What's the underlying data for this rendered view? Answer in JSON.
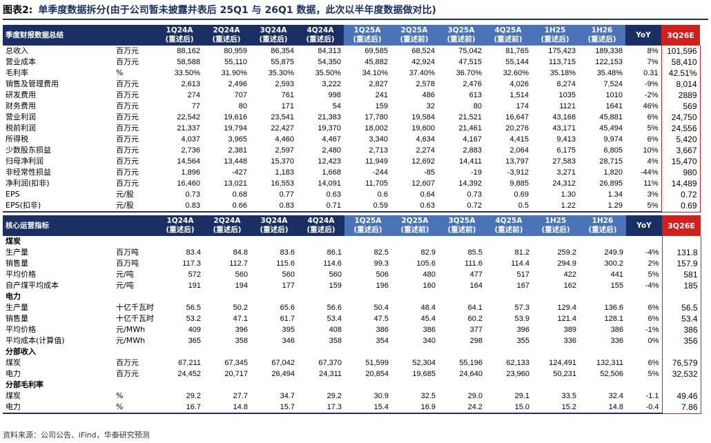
{
  "title": {
    "fig": "图表2:",
    "main": "单季度数据拆分(由于公司暂未披露并表后 25Q1 与 26Q1 数据，此次以半年度数据做对比)"
  },
  "table1": {
    "header": [
      "季度财报数据总结",
      "",
      "1Q24A\n(重述后)",
      "2Q24A\n(重述后)",
      "3Q24A\n(重述后)",
      "4Q24A\n(重述后)",
      "1Q25A\n(重述后)",
      "2Q25A\n(重述前)",
      "3Q25A\n(重述前)",
      "4Q25A\n(重述前)",
      "1H25\n(重述后)",
      "1H26\n(重述后)",
      "YoY",
      "3Q26E"
    ],
    "rows": [
      [
        "总收入",
        "百万元",
        "88,162",
        "80,959",
        "86,354",
        "84,313",
        "69,585",
        "68,524",
        "75,042",
        "81,765",
        "175,423",
        "189,338",
        "8%",
        "101,596"
      ],
      [
        "营业成本",
        "百万元",
        "58,588",
        "55,110",
        "55,875",
        "54,350",
        "45,882",
        "42,924",
        "47,515",
        "55,144",
        "113,715",
        "122,153",
        "7%",
        "58,410"
      ],
      [
        "毛利率",
        "%",
        "33.50%",
        "31.90%",
        "35.30%",
        "35.50%",
        "34.10%",
        "37.40%",
        "36.70%",
        "32.60%",
        "35.18%",
        "35.48%",
        "0.31",
        "42.51%"
      ],
      [
        "销售及管理费用",
        "百万元",
        "2,613",
        "2,496",
        "2,593",
        "3,222",
        "2,827",
        "2,578",
        "2,476",
        "4,026",
        "8,274",
        "7,524",
        "-9%",
        "8,014"
      ],
      [
        "研发费用",
        "百万元",
        "274",
        "707",
        "761",
        "998",
        "241",
        "486",
        "613",
        "1,514",
        "1035",
        "1010",
        "-2%",
        "2889"
      ],
      [
        "财务费用",
        "百万元",
        "77",
        "80",
        "171",
        "54",
        "159",
        "32",
        "80",
        "174",
        "1121",
        "1641",
        "46%",
        "569"
      ],
      [
        "营业利润",
        "百万元",
        "22,542",
        "19,616",
        "23,541",
        "21,383",
        "17,780",
        "19,584",
        "21,521",
        "16,647",
        "43,168",
        "45,881",
        "6%",
        "24,750"
      ],
      [
        "税前利润",
        "百万元",
        "21,337",
        "19,794",
        "22,427",
        "19,370",
        "18,002",
        "19,600",
        "21,461",
        "20,276",
        "43,171",
        "45,494",
        "5%",
        "24,556"
      ],
      [
        "所得税",
        "百万元",
        "4,037",
        "3,965",
        "4,460",
        "4,467",
        "3,340",
        "4,634",
        "4,167",
        "4,415",
        "9,413",
        "9,974",
        "6%",
        "5,420"
      ],
      [
        "少数股东损益",
        "百万元",
        "2,736",
        "2,381",
        "2,597",
        "2,480",
        "2,713",
        "2,274",
        "2,883",
        "2,064",
        "6,175",
        "6,805",
        "10%",
        "3,667"
      ],
      [
        "归母净利润",
        "百万元",
        "14,564",
        "13,448",
        "15,370",
        "12,423",
        "11,949",
        "12,692",
        "14,411",
        "13,797",
        "27,583",
        "28,715",
        "4%",
        "15,470"
      ],
      [
        "非经常性损益",
        "百万元",
        "1,896",
        "-427",
        "1,183",
        "1,668",
        "-244",
        "-85",
        "-19",
        "-3,912",
        "3,271",
        "1,820",
        "-44%",
        "980"
      ],
      [
        "净利润(扣非)",
        "百万元",
        "16,460",
        "13,021",
        "16,553",
        "14,091",
        "11,705",
        "12,607",
        "14,392",
        "9,885",
        "24,312",
        "26,895",
        "11%",
        "14,489"
      ],
      [
        "EPS",
        "元/股",
        "0.73",
        "0.68",
        "0.77",
        "0.63",
        "0.6",
        "0.64",
        "0.73",
        "0.69",
        "1.30",
        "1.34",
        "3%",
        "0.72"
      ],
      [
        "EPS(扣非)",
        "元/股",
        "0.83",
        "0.66",
        "0.83",
        "0.71",
        "0.59",
        "0.63",
        "0.72",
        "0.5",
        "1.22",
        "1.29",
        "5%",
        "0.69"
      ]
    ]
  },
  "table2": {
    "header": [
      "核心运营指标",
      "",
      "1Q24A\n(重述后)",
      "2Q24A\n(重述后)",
      "3Q24A\n(重述后)",
      "4Q24A\n(重述后)",
      "1Q25A\n(重述后)",
      "2Q25A\n(重述前)",
      "3Q25A\n(重述前)",
      "4Q25A\n(重述前)",
      "1H25\n(重述后)",
      "1H26\n(重述后)",
      "YoY",
      "3Q26E"
    ],
    "rows": [
      {
        "section": "煤炭"
      },
      {
        "cells": [
          "生产量",
          "百万吨",
          "83.4",
          "84.8",
          "83.6",
          "86.1",
          "82.5",
          "82.9",
          "85.5",
          "81.2",
          "259.2",
          "249.9",
          "-4%",
          "131.8"
        ]
      },
      {
        "cells": [
          "销售量",
          "百万吨",
          "117.3",
          "112.7",
          "115.6",
          "114.6",
          "99.3",
          "105.6",
          "111.6",
          "114.4",
          "294.9",
          "300.2",
          "2%",
          "157.9"
        ]
      },
      {
        "cells": [
          "平均价格",
          "元/吨",
          "572",
          "560",
          "560",
          "560",
          "506",
          "480",
          "477",
          "517",
          "422",
          "441",
          "5%",
          "581"
        ]
      },
      {
        "cells": [
          "自产煤平均成本",
          "元/吨",
          "191",
          "194",
          "177",
          "159",
          "196",
          "160",
          "164",
          "167",
          "162",
          "155",
          "-4%",
          "185"
        ]
      },
      {
        "section": "电力"
      },
      {
        "cells": [
          "生产量",
          "十亿千瓦时",
          "56.5",
          "50.2",
          "65.6",
          "56.6",
          "50.4",
          "48.4",
          "64.1",
          "57.3",
          "129.4",
          "136.6",
          "6%",
          "56.5"
        ]
      },
      {
        "cells": [
          "销售量",
          "十亿千瓦时",
          "53.2",
          "47.1",
          "61.7",
          "53.4",
          "47.5",
          "45.4",
          "60.2",
          "53.9",
          "121.4",
          "128.1",
          "6%",
          "53.4"
        ]
      },
      {
        "cells": [
          "平均价格",
          "元/MWh",
          "409",
          "396",
          "395",
          "408",
          "386",
          "386",
          "377",
          "396",
          "389",
          "386",
          "-1%",
          "386"
        ]
      },
      {
        "cells": [
          "平均成本(计算值)",
          "元/MWh",
          "365",
          "358",
          "346",
          "358",
          "354",
          "340",
          "298",
          "355",
          "336",
          "336",
          "0%",
          "356"
        ]
      },
      {
        "section": "分部收入"
      },
      {
        "cells": [
          "煤炭",
          "百万元",
          "67,211",
          "67,345",
          "67,042",
          "67,370",
          "51,599",
          "52,304",
          "55,196",
          "62,133",
          "124,491",
          "132,311",
          "6%",
          "76,579"
        ]
      },
      {
        "cells": [
          "电力",
          "百万元",
          "24,452",
          "20,717",
          "26,494",
          "24,311",
          "20,854",
          "19,685",
          "24,640",
          "23,960",
          "50,231",
          "52,506",
          "5%",
          "32,532"
        ]
      },
      {
        "section": "分部毛利率"
      },
      {
        "cells": [
          "煤炭",
          "%",
          "29.2",
          "27.7",
          "34.7",
          "29.2",
          "30.9",
          "32.5",
          "29.0",
          "29.1",
          "33.5",
          "32.4",
          "-1.1",
          "49.46"
        ]
      },
      {
        "cells": [
          "电力",
          "%",
          "16.7",
          "14.8",
          "15.7",
          "17.3",
          "15.4",
          "16.9",
          "24.2",
          "15.0",
          "15.2",
          "14.8",
          "-0.4",
          "7.86"
        ]
      }
    ]
  },
  "source": "资料来源：公司公告、iFind，华泰研究预测",
  "colors": {
    "navy": "#1a2f63",
    "blue": "#4a73b8",
    "red": "#d02020"
  }
}
